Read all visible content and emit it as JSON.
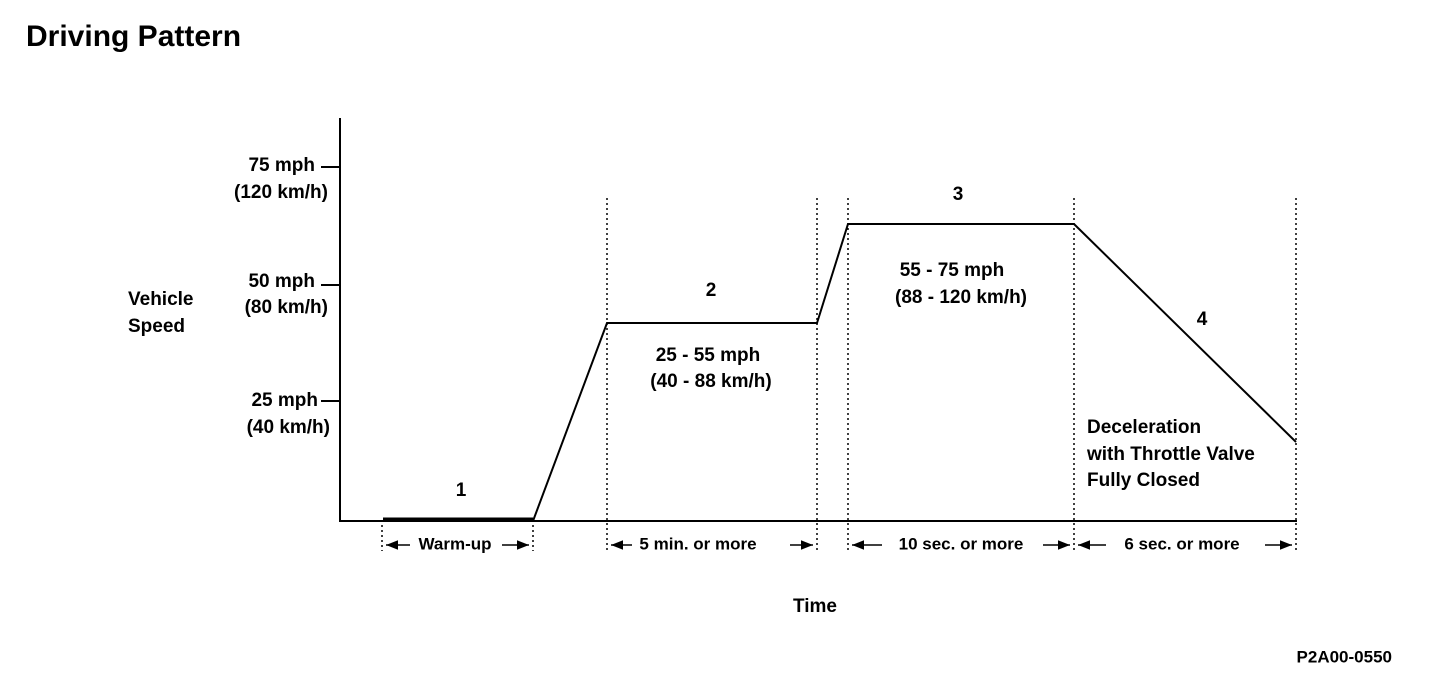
{
  "title": "Driving Pattern",
  "y_axis": {
    "label": [
      "Vehicle",
      "Speed"
    ],
    "ticks": [
      {
        "speed": "75 mph",
        "metric": "(120 km/h)"
      },
      {
        "speed": "50 mph",
        "metric": "(80 km/h)"
      },
      {
        "speed": "25 mph",
        "metric": "(40 km/h)"
      }
    ]
  },
  "x_axis": {
    "label": "Time"
  },
  "stages": [
    {
      "number": "1",
      "duration": "Warm-up"
    },
    {
      "number": "2",
      "speed": [
        "25 - 55 mph",
        "(40 - 88 km/h)"
      ],
      "duration": "5 min. or more"
    },
    {
      "number": "3",
      "speed": [
        "55 - 75 mph",
        "(88 - 120 km/h)"
      ],
      "duration": "10 sec. or more"
    },
    {
      "number": "4",
      "note": [
        "Deceleration",
        "with Throttle Valve",
        "Fully Closed"
      ],
      "duration": "6 sec. or more"
    }
  ],
  "code": "P2A00-0550"
}
